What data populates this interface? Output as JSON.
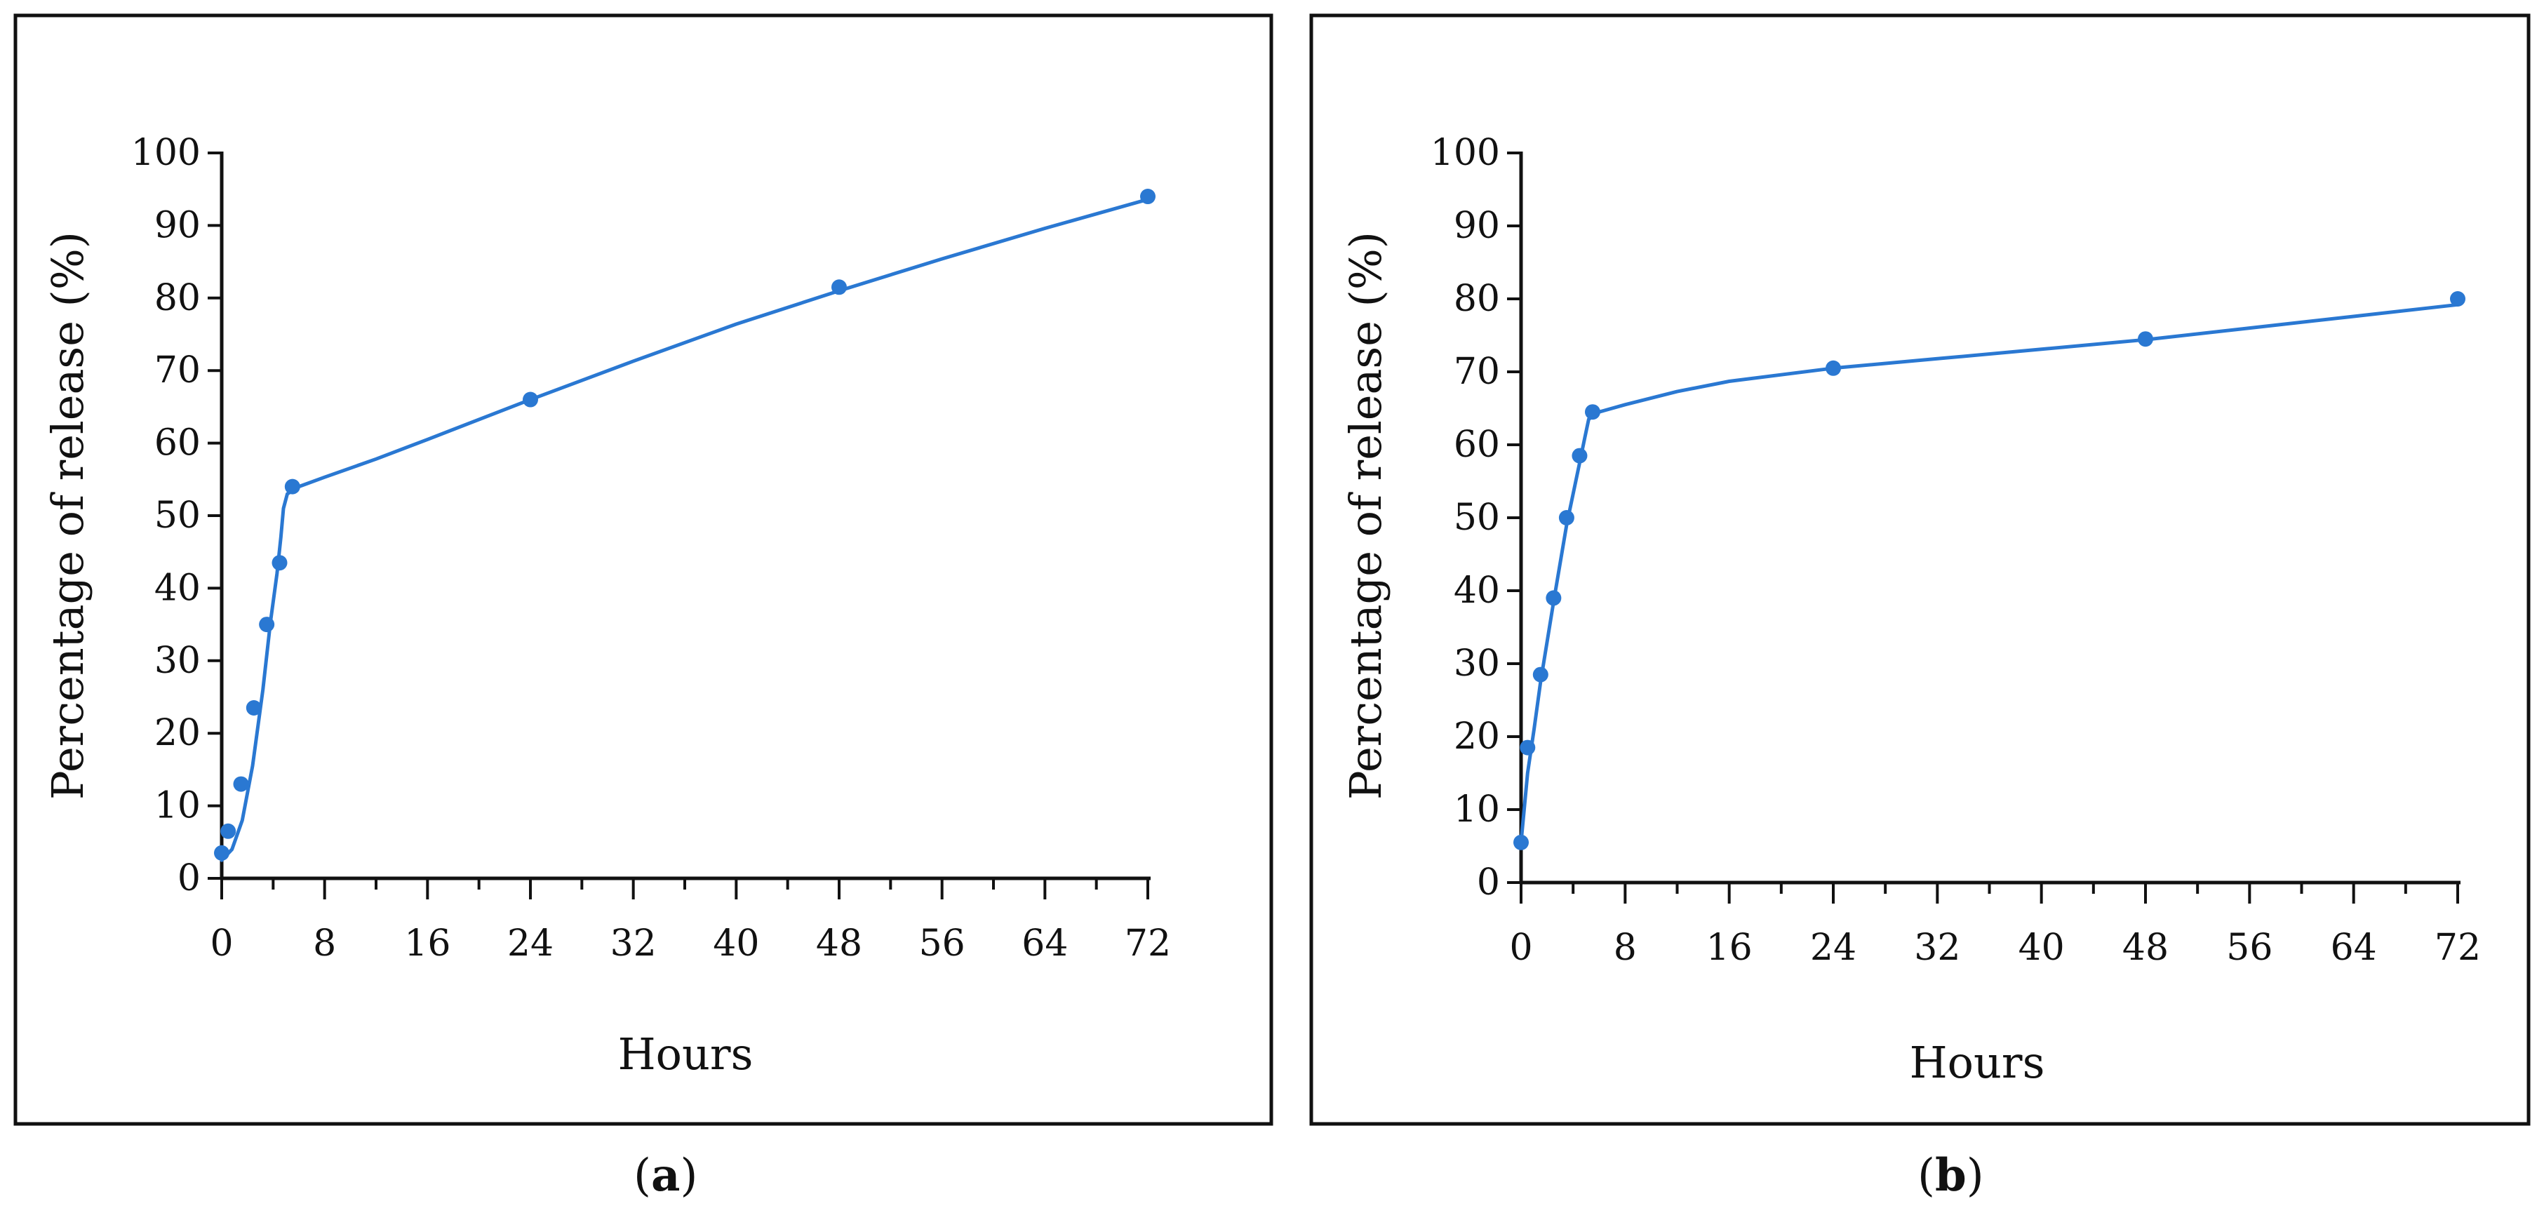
{
  "colors": {
    "series": "#2a78d2",
    "axis": "#111111",
    "frame": "#111111",
    "background": "#ffffff"
  },
  "panels": [
    {
      "caption_open": "(",
      "caption_letter": "a",
      "caption_close": ")"
    },
    {
      "caption_open": "(",
      "caption_letter": "b",
      "caption_close": ")"
    }
  ],
  "chart_data": [
    {
      "type": "scatter",
      "title": "",
      "xlabel": "Hours",
      "ylabel": "Percentage of release (%)",
      "xlim": [
        0,
        72
      ],
      "ylim": [
        0,
        100
      ],
      "xticks": [
        0,
        8,
        16,
        24,
        32,
        40,
        48,
        56,
        64,
        72
      ],
      "xticks_minor": [
        4,
        12,
        20,
        28,
        36,
        44,
        52,
        60,
        68
      ],
      "yticks": [
        0,
        10,
        20,
        30,
        40,
        50,
        60,
        70,
        80,
        90,
        100
      ],
      "grid": false,
      "legend": "none",
      "series": [
        {
          "x": [
            0,
            0.5,
            1.5,
            2.5,
            3.5,
            4.5,
            5.5,
            24,
            48,
            72
          ],
          "y": [
            3.5,
            6.5,
            13,
            23.5,
            35,
            43.5,
            54,
            66,
            81.5,
            94
          ],
          "fit": [
            [
              0,
              2.5
            ],
            [
              0.8,
              4
            ],
            [
              1.6,
              8
            ],
            [
              2.4,
              15.5
            ],
            [
              3.2,
              26
            ],
            [
              3.8,
              35.5
            ],
            [
              4.3,
              42
            ],
            [
              4.6,
              47
            ],
            [
              4.8,
              51
            ],
            [
              5.1,
              53
            ],
            [
              6,
              54
            ],
            [
              8,
              55.3
            ],
            [
              12,
              57.8
            ],
            [
              16,
              60.5
            ],
            [
              24,
              66
            ],
            [
              32,
              71.3
            ],
            [
              40,
              76.4
            ],
            [
              48,
              81
            ],
            [
              56,
              85.4
            ],
            [
              64,
              89.6
            ],
            [
              72,
              93.6
            ]
          ]
        }
      ]
    },
    {
      "type": "scatter",
      "title": "",
      "xlabel": "Hours",
      "ylabel": "Percentage of release (%)",
      "xlim": [
        0,
        72
      ],
      "ylim": [
        0,
        100
      ],
      "xticks": [
        0,
        8,
        16,
        24,
        32,
        40,
        48,
        56,
        64,
        72
      ],
      "xticks_minor": [
        4,
        12,
        20,
        28,
        36,
        44,
        52,
        60,
        68
      ],
      "yticks": [
        0,
        10,
        20,
        30,
        40,
        50,
        60,
        70,
        80,
        90,
        100
      ],
      "grid": false,
      "legend": "none",
      "series": [
        {
          "x": [
            0,
            0.5,
            1.5,
            2.5,
            3.5,
            4.5,
            5.5,
            24,
            48,
            72
          ],
          "y": [
            5.5,
            18.5,
            28.5,
            39,
            50,
            58.5,
            64.5,
            70.5,
            74.5,
            80
          ],
          "fit": [
            [
              0,
              5.5
            ],
            [
              0.5,
              15
            ],
            [
              1,
              21
            ],
            [
              1.5,
              27.5
            ],
            [
              2.5,
              38.5
            ],
            [
              3.5,
              49
            ],
            [
              4.5,
              57.5
            ],
            [
              4.9,
              61
            ],
            [
              5.2,
              63.5
            ],
            [
              6,
              64.5
            ],
            [
              8,
              65.5
            ],
            [
              12,
              67.3
            ],
            [
              16,
              68.7
            ],
            [
              24,
              70.5
            ],
            [
              32,
              71.8
            ],
            [
              40,
              73.1
            ],
            [
              48,
              74.4
            ],
            [
              56,
              76
            ],
            [
              64,
              77.6
            ],
            [
              72,
              79.2
            ]
          ]
        }
      ]
    }
  ]
}
